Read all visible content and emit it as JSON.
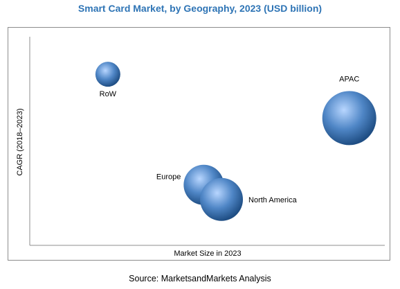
{
  "title": "Smart Card Market, by Geography, 2023 (USD billion)",
  "source": "Source: MarketsandMarkets Analysis",
  "colors": {
    "bubble_light": "#b8d6ff",
    "bubble_mid": "#4f86c6",
    "bubble_dark": "#1f4e84",
    "axis": "#8c8c8c",
    "title": "#2e74b5"
  },
  "chart_data": {
    "type": "scatter",
    "xlabel": "Market Size in 2023",
    "ylabel": "CAGR (2018–2023)",
    "xlim": [
      0,
      100
    ],
    "ylim": [
      0,
      100
    ],
    "grid": false,
    "points": [
      {
        "label": "RoW",
        "x": 22,
        "y": 82,
        "size": 18
      },
      {
        "label": "APAC",
        "x": 90,
        "y": 61,
        "size": 39
      },
      {
        "label": "Europe",
        "x": 49,
        "y": 29,
        "size": 29
      },
      {
        "label": "North America",
        "x": 54,
        "y": 22,
        "size": 31
      }
    ]
  }
}
